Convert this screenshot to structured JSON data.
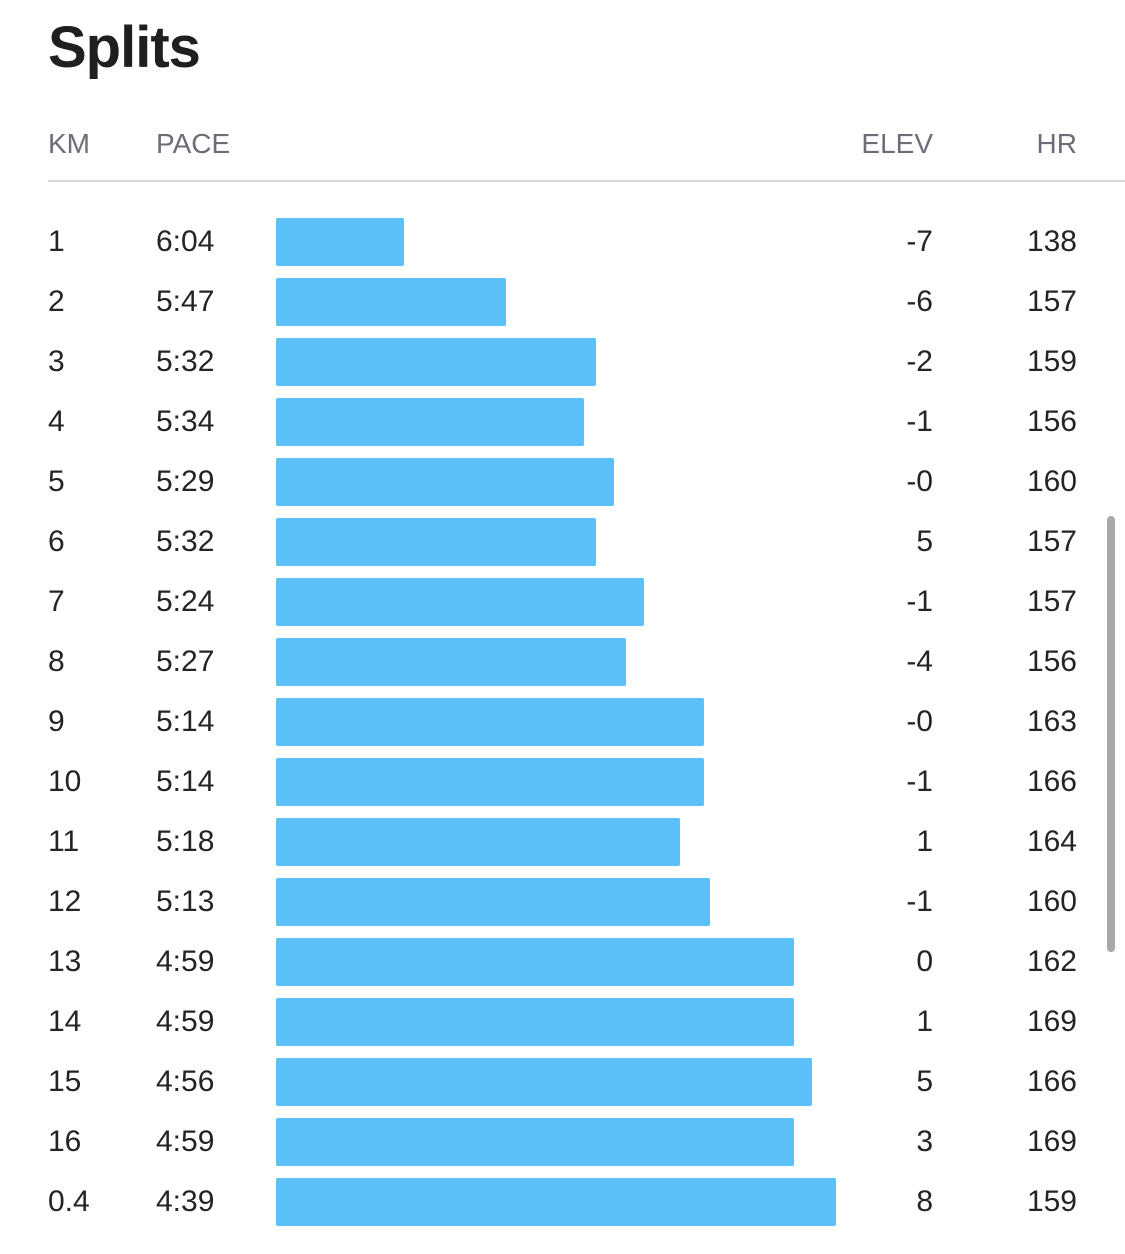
{
  "title": "Splits",
  "columns": {
    "km": "KM",
    "pace": "PACE",
    "elev": "ELEV",
    "hr": "HR"
  },
  "colors": {
    "bar": "#5bc0f8"
  },
  "splits": [
    {
      "km": "1",
      "pace": "6:04",
      "pace_seconds": 364,
      "elev": "-7",
      "hr": "138"
    },
    {
      "km": "2",
      "pace": "5:47",
      "pace_seconds": 347,
      "elev": "-6",
      "hr": "157"
    },
    {
      "km": "3",
      "pace": "5:32",
      "pace_seconds": 332,
      "elev": "-2",
      "hr": "159"
    },
    {
      "km": "4",
      "pace": "5:34",
      "pace_seconds": 334,
      "elev": "-1",
      "hr": "156"
    },
    {
      "km": "5",
      "pace": "5:29",
      "pace_seconds": 329,
      "elev": "-0",
      "hr": "160"
    },
    {
      "km": "6",
      "pace": "5:32",
      "pace_seconds": 332,
      "elev": "5",
      "hr": "157"
    },
    {
      "km": "7",
      "pace": "5:24",
      "pace_seconds": 324,
      "elev": "-1",
      "hr": "157"
    },
    {
      "km": "8",
      "pace": "5:27",
      "pace_seconds": 327,
      "elev": "-4",
      "hr": "156"
    },
    {
      "km": "9",
      "pace": "5:14",
      "pace_seconds": 314,
      "elev": "-0",
      "hr": "163"
    },
    {
      "km": "10",
      "pace": "5:14",
      "pace_seconds": 314,
      "elev": "-1",
      "hr": "166"
    },
    {
      "km": "11",
      "pace": "5:18",
      "pace_seconds": 318,
      "elev": "1",
      "hr": "164"
    },
    {
      "km": "12",
      "pace": "5:13",
      "pace_seconds": 313,
      "elev": "-1",
      "hr": "160"
    },
    {
      "km": "13",
      "pace": "4:59",
      "pace_seconds": 299,
      "elev": "0",
      "hr": "162"
    },
    {
      "km": "14",
      "pace": "4:59",
      "pace_seconds": 299,
      "elev": "1",
      "hr": "169"
    },
    {
      "km": "15",
      "pace": "4:56",
      "pace_seconds": 296,
      "elev": "5",
      "hr": "166"
    },
    {
      "km": "16",
      "pace": "4:59",
      "pace_seconds": 299,
      "elev": "3",
      "hr": "169"
    },
    {
      "km": "0.4",
      "pace": "4:39",
      "pace_seconds": 279,
      "elev": "8",
      "hr": "159"
    }
  ]
}
